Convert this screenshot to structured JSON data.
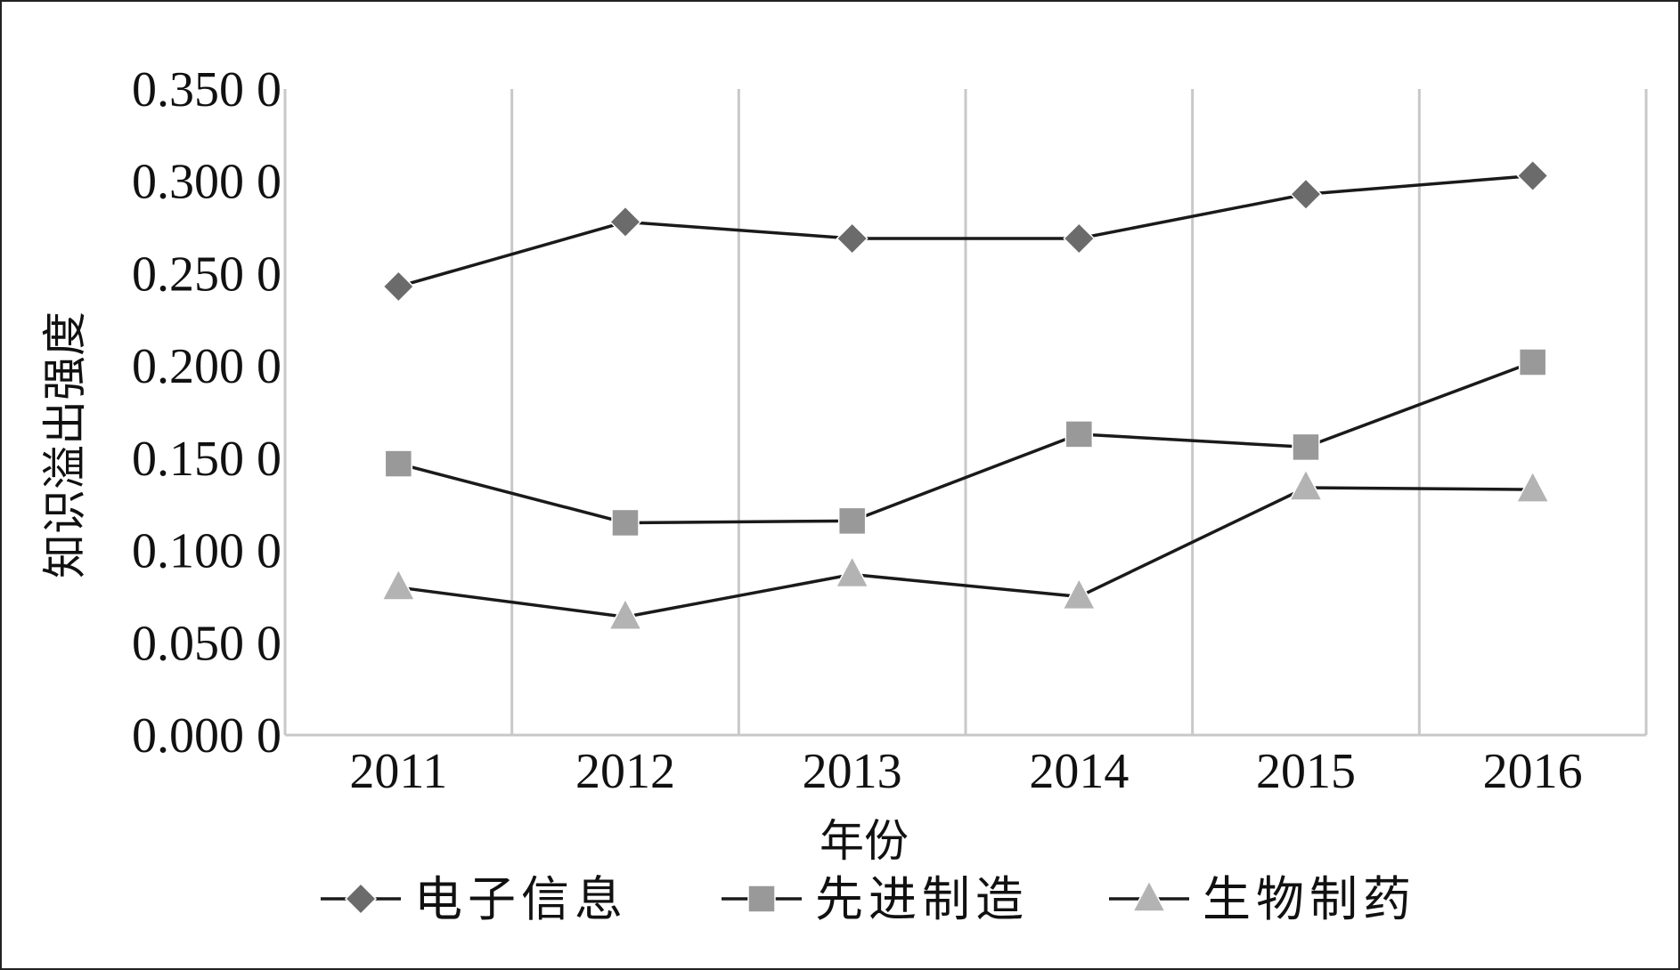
{
  "chart_data": {
    "type": "line",
    "xlabel": "年份",
    "ylabel": "知识溢出强度",
    "categories": [
      "2011",
      "2012",
      "2013",
      "2014",
      "2015",
      "2016"
    ],
    "ylim": [
      0,
      0.35
    ],
    "yticks": [
      "0.000 0",
      "0.050 0",
      "0.100 0",
      "0.150 0",
      "0.200 0",
      "0.250 0",
      "0.300 0",
      "0.350 0"
    ],
    "grid": "vertical",
    "legend_position": "bottom",
    "series": [
      {
        "name": "电子信息",
        "marker": "diamond",
        "color": "#6b6b6b",
        "values": [
          0.243,
          0.278,
          0.269,
          0.269,
          0.293,
          0.303
        ]
      },
      {
        "name": "先进制造",
        "marker": "square",
        "color": "#999999",
        "values": [
          0.147,
          0.115,
          0.116,
          0.163,
          0.156,
          0.202
        ]
      },
      {
        "name": "生物制药",
        "marker": "triangle",
        "color": "#b3b3b3",
        "values": [
          0.08,
          0.064,
          0.087,
          0.075,
          0.134,
          0.133
        ]
      }
    ]
  }
}
